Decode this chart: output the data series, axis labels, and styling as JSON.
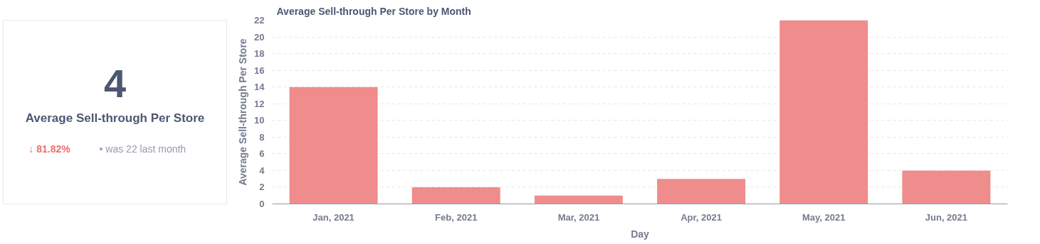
{
  "chart_data": [
    {
      "type": "other",
      "title": "Average Sell-through Per Store",
      "values": [
        4
      ],
      "data_labels": true,
      "annotations": [
        "↓ 81.82%",
        "• was 22  last month"
      ]
    },
    {
      "type": "bar",
      "title": "Average Sell-through Per Store by Month",
      "xlabel": "Day",
      "ylabel": "Average Sell-through Per Store",
      "categories": [
        "Jan, 2021",
        "Feb, 2021",
        "Mar, 2021",
        "Apr, 2021",
        "May, 2021",
        "Jun, 2021"
      ],
      "values": [
        14,
        2,
        1,
        3,
        22,
        4
      ],
      "color": "#ef8c8c",
      "ylim": [
        0,
        22
      ],
      "yticks": [
        0,
        2,
        4,
        6,
        8,
        10,
        12,
        14,
        16,
        18,
        20,
        22
      ],
      "grid": "y"
    }
  ]
}
